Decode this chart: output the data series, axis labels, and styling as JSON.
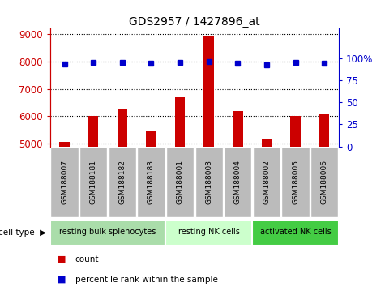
{
  "title": "GDS2957 / 1427896_at",
  "samples": [
    "GSM188007",
    "GSM188181",
    "GSM188182",
    "GSM188183",
    "GSM188001",
    "GSM188003",
    "GSM188004",
    "GSM188002",
    "GSM188005",
    "GSM188006"
  ],
  "counts": [
    5070,
    6000,
    6280,
    5440,
    6700,
    8950,
    6180,
    5180,
    6000,
    6080
  ],
  "percentile_ranks": [
    93,
    95,
    95,
    94,
    95,
    96,
    94,
    92,
    95,
    94
  ],
  "bar_color": "#cc0000",
  "dot_color": "#0000cc",
  "ylim_left": [
    4900,
    9200
  ],
  "yticks_left": [
    5000,
    6000,
    7000,
    8000,
    9000
  ],
  "ylim_right": [
    0,
    133.33
  ],
  "yticks_right": [
    0,
    25,
    50,
    75,
    100
  ],
  "yticklabels_right": [
    "0",
    "25",
    "50",
    "75",
    "100%"
  ],
  "bar_width": 0.35,
  "cell_types": [
    {
      "label": "resting bulk splenocytes",
      "start": 0,
      "end": 4,
      "color": "#aaddaa"
    },
    {
      "label": "resting NK cells",
      "start": 4,
      "end": 7,
      "color": "#ccffcc"
    },
    {
      "label": "activated NK cells",
      "start": 7,
      "end": 10,
      "color": "#44cc44"
    }
  ],
  "xlabel_cell_type": "cell type",
  "legend_count_label": "count",
  "legend_pct_label": "percentile rank within the sample",
  "tick_label_bg": "#bbbbbb",
  "xtick_label_height": 0.9
}
